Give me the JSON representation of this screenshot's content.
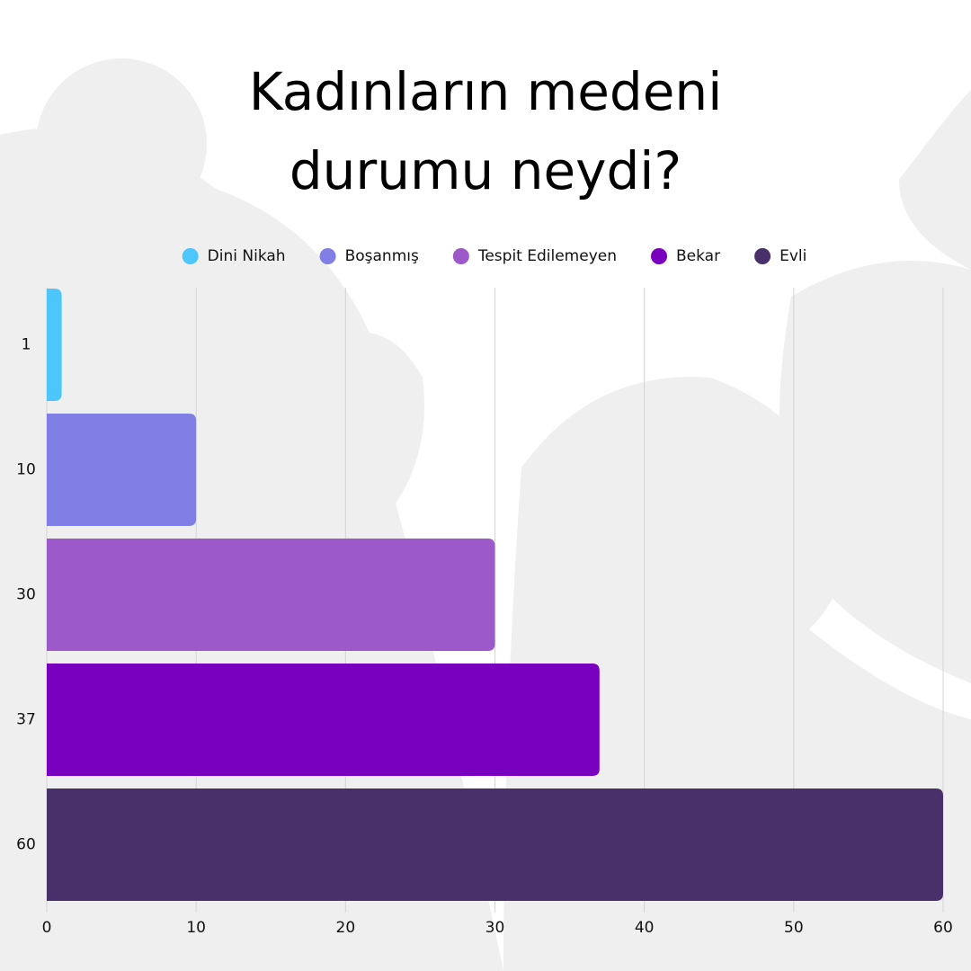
{
  "chart_data": {
    "type": "bar",
    "orientation": "horizontal",
    "title": "Kadınların medeni durumu neydi?",
    "categories": [
      "1",
      "10",
      "30",
      "37",
      "60"
    ],
    "series": [
      {
        "name": "Dini Nikah",
        "color": "#4cc6fb",
        "values": [
          1,
          null,
          null,
          null,
          null
        ]
      },
      {
        "name": "Boşanmış",
        "color": "#7f7fe6",
        "values": [
          null,
          10,
          null,
          null,
          null
        ]
      },
      {
        "name": "Tespit Edilemeyen",
        "color": "#9b59c9",
        "values": [
          null,
          null,
          30,
          null,
          null
        ]
      },
      {
        "name": "Bekar",
        "color": "#7a00bf",
        "values": [
          null,
          null,
          null,
          37,
          null
        ]
      },
      {
        "name": "Evli",
        "color": "#48306b",
        "values": [
          null,
          null,
          null,
          null,
          60
        ]
      }
    ],
    "xlim": [
      0,
      60
    ],
    "xticks": [
      0,
      10,
      20,
      30,
      40,
      50,
      60
    ],
    "grid": true,
    "legend": "top"
  }
}
